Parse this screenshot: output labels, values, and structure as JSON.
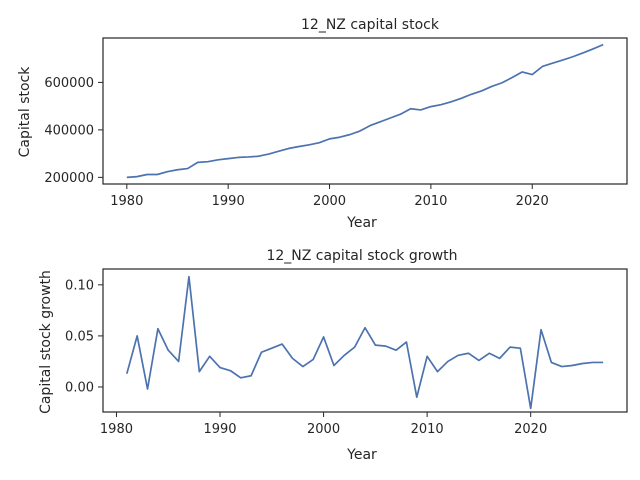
{
  "chart_data": [
    {
      "type": "line",
      "title": "12_NZ capital stock",
      "xlabel": "Year",
      "ylabel": "Capital stock",
      "xlim": [
        1977.65,
        2029.35
      ],
      "ylim": [
        172000,
        787000
      ],
      "xticks": [
        1980,
        1990,
        2000,
        2010,
        2020
      ],
      "xtick_labels": [
        "1980",
        "1990",
        "2000",
        "2010",
        "2020"
      ],
      "yticks": [
        200000,
        400000,
        600000
      ],
      "ytick_labels": [
        "200000",
        "400000",
        "600000"
      ],
      "grid": false,
      "series": [
        {
          "color": "#4c72b0",
          "x": [
            1980,
            1981,
            1982,
            1983,
            1984,
            1985,
            1986,
            1987,
            1988,
            1989,
            1990,
            1991,
            1992,
            1993,
            1994,
            1995,
            1996,
            1997,
            1998,
            1999,
            2000,
            2001,
            2002,
            2003,
            2004,
            2005,
            2006,
            2007,
            2008,
            2009,
            2010,
            2011,
            2012,
            2013,
            2014,
            2015,
            2016,
            2017,
            2018,
            2019,
            2020,
            2021,
            2022,
            2023,
            2024,
            2025,
            2026,
            2027
          ],
          "values": [
            200000,
            203000,
            212000,
            212000,
            224000,
            232000,
            237000,
            263000,
            266000,
            274000,
            279000,
            284000,
            286000,
            289000,
            298000,
            310000,
            322000,
            330000,
            337000,
            346000,
            362000,
            369000,
            380000,
            395000,
            418000,
            434000,
            450000,
            466000,
            489000,
            484000,
            498000,
            506000,
            518000,
            533000,
            550000,
            564000,
            583000,
            598000,
            620000,
            644000,
            633000,
            667000,
            681000,
            694000,
            708000,
            724000,
            741000,
            759000
          ]
        }
      ]
    },
    {
      "type": "line",
      "title": "12_NZ capital stock growth",
      "xlabel": "Year",
      "ylabel": "Capital stock growth",
      "xlim": [
        1978.7,
        2029.3
      ],
      "ylim": [
        -0.0245,
        0.1155
      ],
      "xticks": [
        1980,
        1990,
        2000,
        2010,
        2020
      ],
      "xtick_labels": [
        "1980",
        "1990",
        "2000",
        "2010",
        "2020"
      ],
      "yticks": [
        0.0,
        0.05,
        0.1
      ],
      "ytick_labels": [
        "0.00",
        "0.05",
        "0.10"
      ],
      "grid": false,
      "series": [
        {
          "color": "#4c72b0",
          "x": [
            1981,
            1982,
            1983,
            1984,
            1985,
            1986,
            1987,
            1988,
            1989,
            1990,
            1991,
            1992,
            1993,
            1994,
            1995,
            1996,
            1997,
            1998,
            1999,
            2000,
            2001,
            2002,
            2003,
            2004,
            2005,
            2006,
            2007,
            2008,
            2009,
            2010,
            2011,
            2012,
            2013,
            2014,
            2015,
            2016,
            2017,
            2018,
            2019,
            2020,
            2021,
            2022,
            2023,
            2024,
            2025,
            2026,
            2027
          ],
          "values": [
            0.013,
            0.05,
            -0.002,
            0.057,
            0.036,
            0.025,
            0.108,
            0.015,
            0.03,
            0.019,
            0.016,
            0.009,
            0.011,
            0.034,
            0.038,
            0.042,
            0.028,
            0.02,
            0.027,
            0.049,
            0.021,
            0.031,
            0.039,
            0.058,
            0.041,
            0.04,
            0.036,
            0.044,
            -0.01,
            0.03,
            0.015,
            0.025,
            0.031,
            0.033,
            0.026,
            0.033,
            0.028,
            0.039,
            0.038,
            -0.021,
            0.056,
            0.024,
            0.02,
            0.021,
            0.023,
            0.024,
            0.024
          ]
        }
      ]
    }
  ]
}
